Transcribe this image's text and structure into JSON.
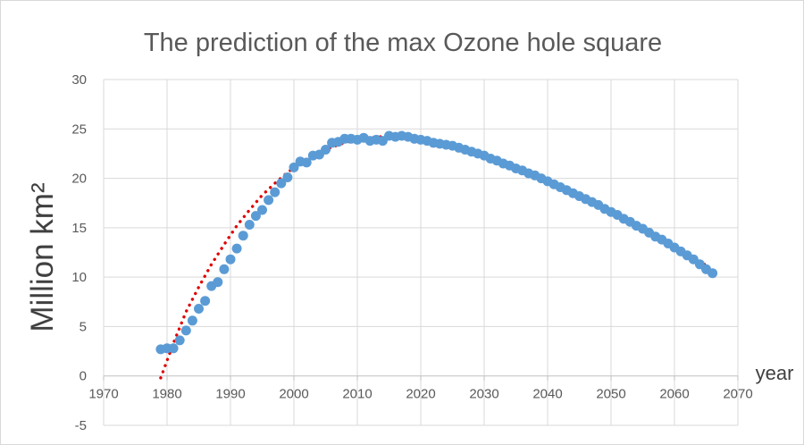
{
  "chart_data": {
    "type": "scatter",
    "title": "The prediction of the max Ozone hole square",
    "xlabel": "year",
    "ylabel": "Million km²",
    "xlim": [
      1970,
      2070
    ],
    "ylim": [
      -5,
      30
    ],
    "x_ticks": [
      1970,
      1980,
      1990,
      2000,
      2010,
      2020,
      2030,
      2040,
      2050,
      2060,
      2070
    ],
    "y_ticks": [
      -5,
      0,
      5,
      10,
      15,
      20,
      25,
      30
    ],
    "grid": true,
    "legend": "none",
    "series": [
      {
        "style": "markers",
        "color": "#5b9bd5",
        "x": [
          1979,
          1980,
          1981,
          1982,
          1983,
          1984,
          1985,
          1986,
          1987,
          1988,
          1989,
          1990,
          1991,
          1992,
          1993,
          1994,
          1995,
          1996,
          1997,
          1998,
          1999,
          2000,
          2001,
          2002,
          2003,
          2004,
          2005,
          2006,
          2007,
          2008,
          2009,
          2010,
          2011,
          2012,
          2013,
          2014,
          2015,
          2016,
          2017,
          2018,
          2019,
          2020,
          2021,
          2022,
          2023,
          2024,
          2025,
          2026,
          2027,
          2028,
          2029,
          2030,
          2031,
          2032,
          2033,
          2034,
          2035,
          2036,
          2037,
          2038,
          2039,
          2040,
          2041,
          2042,
          2043,
          2044,
          2045,
          2046,
          2047,
          2048,
          2049,
          2050,
          2051,
          2052,
          2053,
          2054,
          2055,
          2056,
          2057,
          2058,
          2059,
          2060,
          2061,
          2062,
          2063,
          2064,
          2065,
          2066
        ],
        "y": [
          2.7,
          2.8,
          2.8,
          3.6,
          4.6,
          5.6,
          6.8,
          7.6,
          9.1,
          9.5,
          10.8,
          11.8,
          12.9,
          14.2,
          15.3,
          16.2,
          16.8,
          17.8,
          18.6,
          19.5,
          20.1,
          21.1,
          21.7,
          21.6,
          22.3,
          22.4,
          22.9,
          23.6,
          23.7,
          24.0,
          24.0,
          23.9,
          24.1,
          23.8,
          23.9,
          23.8,
          24.3,
          24.2,
          24.3,
          24.2,
          24.0,
          23.9,
          23.8,
          23.6,
          23.5,
          23.4,
          23.3,
          23.1,
          22.9,
          22.7,
          22.5,
          22.3,
          22.0,
          21.8,
          21.5,
          21.3,
          21.0,
          20.8,
          20.5,
          20.3,
          20.0,
          19.7,
          19.4,
          19.1,
          18.8,
          18.5,
          18.2,
          17.9,
          17.6,
          17.3,
          16.9,
          16.6,
          16.3,
          15.9,
          15.6,
          15.2,
          14.9,
          14.5,
          14.1,
          13.8,
          13.4,
          13.0,
          12.6,
          12.2,
          11.8,
          11.3,
          10.8,
          10.4
        ]
      },
      {
        "style": "dotted trendline",
        "color": "#e00000",
        "x": [
          1979,
          1981,
          1983,
          1985,
          1987,
          1989,
          1991,
          1993,
          1995,
          1997,
          1999,
          2001,
          2003,
          2005,
          2007,
          2009,
          2011,
          2013,
          2015,
          2017,
          2019,
          2021,
          2023,
          2025,
          2027,
          2029,
          2031,
          2033,
          2035,
          2037,
          2039,
          2041,
          2043,
          2045,
          2047,
          2049,
          2051,
          2053,
          2055,
          2057,
          2059,
          2061,
          2063,
          2065
        ],
        "y": [
          -0.2,
          3.3,
          6.5,
          9.0,
          11.3,
          13.3,
          15.2,
          16.8,
          18.3,
          19.5,
          20.6,
          21.5,
          22.3,
          22.9,
          23.4,
          23.8,
          24.0,
          24.2,
          24.2,
          24.2,
          24.1,
          23.9,
          23.6,
          23.3,
          22.9,
          22.5,
          22.0,
          21.5,
          21.0,
          20.5,
          20.0,
          19.4,
          18.8,
          18.2,
          17.6,
          16.9,
          16.2,
          15.6,
          14.9,
          14.2,
          13.4,
          12.7,
          11.9,
          11.2
        ]
      }
    ]
  }
}
